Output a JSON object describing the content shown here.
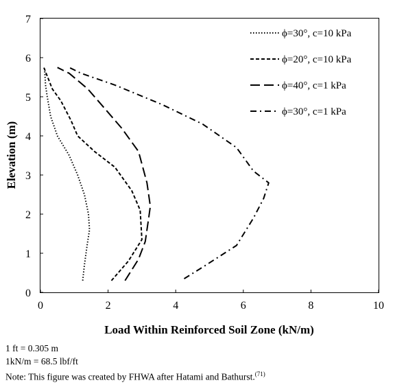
{
  "chart_data": {
    "type": "line",
    "xlabel": "Load Within Reinforced Soil Zone (kN/m)",
    "ylabel": "Elevation (m)",
    "xlim": [
      0,
      10
    ],
    "ylim": [
      0,
      7
    ],
    "xticks": [
      "0",
      "2",
      "4",
      "6",
      "8",
      "10"
    ],
    "yticks": [
      "0",
      "1",
      "2",
      "3",
      "4",
      "5",
      "6",
      "7"
    ],
    "grid": false,
    "legend_position": "top-right",
    "series": [
      {
        "name": "ϕ=30°, c=10 kPa",
        "style": "dotted",
        "points": [
          [
            1.25,
            0.3
          ],
          [
            1.3,
            0.7
          ],
          [
            1.38,
            1.2
          ],
          [
            1.45,
            1.6
          ],
          [
            1.42,
            2.0
          ],
          [
            1.3,
            2.5
          ],
          [
            1.1,
            3.0
          ],
          [
            0.85,
            3.5
          ],
          [
            0.5,
            4.0
          ],
          [
            0.3,
            4.5
          ],
          [
            0.2,
            5.0
          ],
          [
            0.15,
            5.3
          ],
          [
            0.12,
            5.75
          ]
        ]
      },
      {
        "name": "ϕ=20°, c=10 kPa",
        "style": "dashed",
        "points": [
          [
            2.1,
            0.3
          ],
          [
            2.6,
            0.8
          ],
          [
            3.0,
            1.35
          ],
          [
            2.95,
            2.1
          ],
          [
            2.7,
            2.6
          ],
          [
            2.2,
            3.2
          ],
          [
            1.6,
            3.6
          ],
          [
            1.1,
            4.0
          ],
          [
            0.9,
            4.4
          ],
          [
            0.6,
            4.9
          ],
          [
            0.35,
            5.2
          ],
          [
            0.1,
            5.75
          ]
        ]
      },
      {
        "name": "ϕ=40°, c=1 kPa",
        "style": "long-dash",
        "points": [
          [
            2.5,
            0.3
          ],
          [
            2.9,
            0.85
          ],
          [
            3.1,
            1.3
          ],
          [
            3.2,
            1.9
          ],
          [
            3.25,
            2.2
          ],
          [
            3.15,
            2.8
          ],
          [
            2.9,
            3.6
          ],
          [
            2.4,
            4.2
          ],
          [
            1.9,
            4.7
          ],
          [
            1.4,
            5.2
          ],
          [
            0.85,
            5.6
          ],
          [
            0.5,
            5.75
          ]
        ]
      },
      {
        "name": "ϕ=30°, c=1 kPa",
        "style": "dash-dot",
        "points": [
          [
            4.25,
            0.35
          ],
          [
            4.9,
            0.7
          ],
          [
            5.8,
            1.2
          ],
          [
            6.3,
            1.9
          ],
          [
            6.6,
            2.4
          ],
          [
            6.75,
            2.8
          ],
          [
            6.3,
            3.1
          ],
          [
            5.8,
            3.7
          ],
          [
            4.8,
            4.3
          ],
          [
            3.6,
            4.8
          ],
          [
            2.2,
            5.3
          ],
          [
            1.2,
            5.6
          ],
          [
            0.85,
            5.75
          ]
        ]
      }
    ]
  },
  "notes": {
    "line1": "1 ft = 0.305 m",
    "line2": "1kN/m = 68.5 lbf/ft",
    "line3": "Note: This figure was created by FHWA after Hatami and Bathurst.",
    "reference": "(71)"
  }
}
